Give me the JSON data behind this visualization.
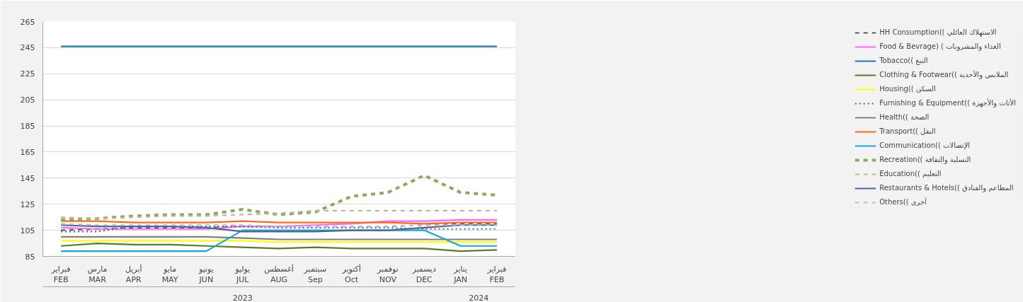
{
  "chart_data": {
    "type": "line",
    "categories": [
      "فبراير\nFEB",
      "مارس\nMAR",
      "أبريل\nAPR",
      "مايو\nMAY",
      "يونيو\nJUN",
      "يوليو\nJUL",
      "أغسطس\nAUG",
      "سبتمبر\nSep",
      "أكتوبر\nOct",
      "نوفمبر\nNOV",
      "ديسمبر\nDEC",
      "يناير\nJAN",
      "فبراير\nFEB"
    ],
    "ylim": [
      85,
      265
    ],
    "yticks": [
      85,
      105,
      125,
      145,
      165,
      185,
      205,
      225,
      245,
      265
    ],
    "grid": "y",
    "legend": "right",
    "annotations": [
      "2023",
      "2024"
    ],
    "series": [
      {
        "name": "HH Consumption(( الاستهلاك العائلي",
        "color": "#595959",
        "line_style": "dashed",
        "values": [
          105,
          106,
          107,
          107,
          107,
          108,
          108,
          108,
          108,
          108,
          109,
          110,
          110
        ]
      },
      {
        "name": "Food & Bevrage) ( الغذاء والمشروبات",
        "color": "#ff66ff",
        "line_style": "solid",
        "values": [
          107,
          106,
          106,
          106,
          106,
          108,
          108,
          109,
          110,
          112,
          112,
          113,
          113
        ]
      },
      {
        "name": "Tobacco(( التبغ",
        "color": "#1f7bb0",
        "line_style": "solid",
        "values": [
          246,
          246,
          246,
          246,
          246,
          246,
          246,
          246,
          246,
          246,
          246,
          246,
          246
        ]
      },
      {
        "name": "Clothing & Footwear(( الملابس والأحذية",
        "color": "#5e7a2e",
        "line_style": "solid",
        "values": [
          93,
          95,
          94,
          94,
          93,
          92,
          91,
          92,
          91,
          91,
          91,
          89,
          90
        ]
      },
      {
        "name": "Housing(( السكن",
        "color": "#ffff00",
        "line_style": "solid",
        "values": [
          97,
          97,
          97,
          97,
          97,
          97,
          96,
          96,
          96,
          96,
          96,
          96,
          96
        ]
      },
      {
        "name": "Furnishing & Equipment(( الأثاث والأجهزة",
        "color": "#4a6e6e",
        "line_style": "dotted",
        "values": [
          104,
          104,
          108,
          108,
          108,
          108,
          107,
          107,
          107,
          107,
          106,
          106,
          106
        ]
      },
      {
        "name": "Health(( الصحة",
        "color": "#808080",
        "line_style": "solid",
        "values": [
          100,
          100,
          100,
          100,
          100,
          99,
          98,
          98,
          98,
          98,
          98,
          98,
          98
        ]
      },
      {
        "name": "Transport(( النقل",
        "color": "#ff6a1a",
        "line_style": "solid",
        "values": [
          112,
          112,
          111,
          111,
          111,
          112,
          111,
          111,
          111,
          111,
          110,
          111,
          111
        ]
      },
      {
        "name": "Communication(( الإتصالات",
        "color": "#16a5de",
        "line_style": "solid",
        "values": [
          89,
          89,
          89,
          89,
          89,
          105,
          105,
          105,
          105,
          105,
          105,
          93,
          93
        ]
      },
      {
        "name": "Recreation(( التسلية والثقافة",
        "color": "#8aac5a",
        "line_style": "dashed",
        "values": [
          113,
          114,
          116,
          117,
          117,
          121,
          117,
          119,
          131,
          134,
          147,
          134,
          132
        ]
      },
      {
        "name": "Education(( التعليم",
        "color": "#c4b39a",
        "line_style": "dashed",
        "values": [
          115,
          114,
          115,
          116,
          116,
          117,
          118,
          120,
          120,
          120,
          120,
          120,
          120
        ]
      },
      {
        "name": "Restaurants & Hotels(( المطاعم والفنادق",
        "color": "#44689a",
        "line_style": "solid",
        "values": [
          109,
          108,
          108,
          108,
          107,
          104,
          104,
          104,
          105,
          105,
          107,
          109,
          109
        ]
      },
      {
        "name": "Others(( أخرى",
        "color": "#bfbfbf",
        "line_style": "dashed",
        "values": [
          110,
          109,
          109,
          109,
          109,
          109,
          108,
          108,
          108,
          108,
          109,
          109,
          109
        ]
      }
    ]
  }
}
